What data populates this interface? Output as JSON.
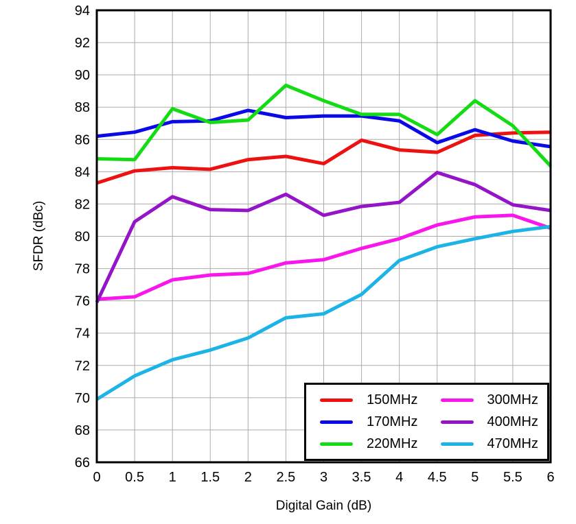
{
  "chart_data": {
    "type": "line",
    "title": "",
    "xlabel": "Digital Gain (dB)",
    "ylabel": "SFDR (dBc)",
    "xlim": [
      0,
      6
    ],
    "ylim": [
      66,
      94
    ],
    "xticks": [
      "0",
      "0.5",
      "1",
      "1.5",
      "2",
      "2.5",
      "3",
      "3.5",
      "4",
      "4.5",
      "5",
      "5.5",
      "6"
    ],
    "yticks": [
      "66",
      "68",
      "70",
      "72",
      "74",
      "76",
      "78",
      "80",
      "82",
      "84",
      "86",
      "88",
      "90",
      "92",
      "94"
    ],
    "grid": true,
    "grid_color": "#ABABAB",
    "axis_color": "#000000",
    "legend_position": "bottom-right",
    "x": [
      0,
      0.5,
      1,
      1.5,
      2,
      2.5,
      3,
      3.5,
      4,
      4.5,
      5,
      5.5,
      6
    ],
    "series": [
      {
        "name": "150MHz",
        "color": "#EC1212",
        "values": [
          83.3,
          84.05,
          84.25,
          84.15,
          84.75,
          84.95,
          84.5,
          85.95,
          85.35,
          85.2,
          86.25,
          86.4,
          86.45
        ]
      },
      {
        "name": "170MHz",
        "color": "#0A0AE6",
        "values": [
          86.2,
          86.45,
          87.1,
          87.15,
          87.8,
          87.35,
          87.45,
          87.45,
          87.15,
          85.8,
          86.6,
          85.9,
          85.55
        ]
      },
      {
        "name": "220MHz",
        "color": "#14DC14",
        "values": [
          84.8,
          84.75,
          87.9,
          87.05,
          87.2,
          89.35,
          88.4,
          87.55,
          87.55,
          86.3,
          88.4,
          86.85,
          84.35
        ]
      },
      {
        "name": "300MHz",
        "color": "#F816EC",
        "values": [
          76.1,
          76.25,
          77.3,
          77.6,
          77.7,
          78.35,
          78.55,
          79.25,
          79.85,
          80.7,
          81.2,
          81.3,
          80.5
        ]
      },
      {
        "name": "400MHz",
        "color": "#9614C8",
        "values": [
          75.9,
          80.9,
          82.45,
          81.65,
          81.6,
          82.6,
          81.3,
          81.85,
          82.1,
          83.95,
          83.2,
          81.95,
          81.6
        ]
      },
      {
        "name": "470MHz",
        "color": "#1CB4E6",
        "values": [
          69.9,
          71.35,
          72.35,
          72.95,
          73.7,
          74.95,
          75.2,
          76.4,
          78.5,
          79.35,
          79.85,
          80.3,
          80.6
        ]
      }
    ]
  }
}
